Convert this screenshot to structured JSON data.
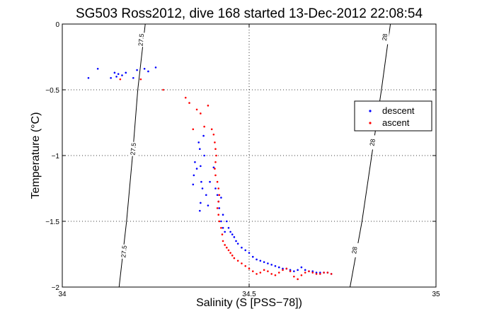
{
  "chart_data": {
    "type": "scatter",
    "title": "SG503 Ross2012, dive 168 started 13-Dec-2012 22:08:54",
    "xlabel": "Salinity (S [PSS−78])",
    "ylabel": "Temperature (°C)",
    "xlim": [
      34,
      35
    ],
    "ylim": [
      -2,
      0
    ],
    "x_ticks": [
      34,
      34.5,
      35
    ],
    "x_tick_labels": [
      "34",
      "34.5",
      "35"
    ],
    "y_ticks": [
      0,
      -0.5,
      -1,
      -1.5,
      -2
    ],
    "y_tick_labels": [
      "0",
      "−0.5",
      "−1",
      "−1.5",
      "−2"
    ],
    "grid": true,
    "legend_position": "upper-right",
    "density_contours": [
      {
        "label": "27.5",
        "points": [
          [
            34.152,
            -2.0
          ],
          [
            34.172,
            -1.5
          ],
          [
            34.188,
            -1.0
          ],
          [
            34.202,
            -0.5
          ],
          [
            34.222,
            0.0
          ]
        ],
        "label_positions": [
          [
            34.211,
            -0.12
          ],
          [
            34.19,
            -0.95
          ],
          [
            34.165,
            -1.73
          ]
        ]
      },
      {
        "label": "28",
        "points": [
          [
            34.77,
            -2.0
          ],
          [
            34.802,
            -1.5
          ],
          [
            34.828,
            -1.0
          ],
          [
            34.854,
            -0.5
          ],
          [
            34.878,
            0.0
          ]
        ],
        "label_positions": [
          [
            34.863,
            -0.1
          ],
          [
            34.83,
            -0.9
          ],
          [
            34.782,
            -1.72
          ]
        ]
      }
    ],
    "series": [
      {
        "name": "descent",
        "color": "#0000ff",
        "points": [
          [
            34.07,
            -0.41
          ],
          [
            34.095,
            -0.34
          ],
          [
            34.13,
            -0.41
          ],
          [
            34.14,
            -0.37
          ],
          [
            34.145,
            -0.4
          ],
          [
            34.15,
            -0.38
          ],
          [
            34.16,
            -0.39
          ],
          [
            34.17,
            -0.37
          ],
          [
            34.19,
            -0.41
          ],
          [
            34.2,
            -0.35
          ],
          [
            34.22,
            -0.34
          ],
          [
            34.25,
            -0.33
          ],
          [
            34.23,
            -0.36
          ],
          [
            34.35,
            -1.22
          ],
          [
            34.352,
            -1.15
          ],
          [
            34.355,
            -1.05
          ],
          [
            34.36,
            -1.1
          ],
          [
            34.365,
            -0.9
          ],
          [
            34.368,
            -0.95
          ],
          [
            34.37,
            -1.08
          ],
          [
            34.372,
            -1.2
          ],
          [
            34.375,
            -1.25
          ],
          [
            34.378,
            -0.85
          ],
          [
            34.38,
            -1.0
          ],
          [
            34.385,
            -1.3
          ],
          [
            34.37,
            -1.36
          ],
          [
            34.368,
            -1.42
          ],
          [
            34.39,
            -1.38
          ],
          [
            34.395,
            -1.2
          ],
          [
            34.405,
            -1.09
          ],
          [
            34.41,
            -1.25
          ],
          [
            34.415,
            -1.3
          ],
          [
            34.418,
            -1.35
          ],
          [
            34.42,
            -1.4
          ],
          [
            34.425,
            -1.32
          ],
          [
            34.43,
            -1.45
          ],
          [
            34.425,
            -1.5
          ],
          [
            34.43,
            -1.55
          ],
          [
            34.435,
            -1.58
          ],
          [
            34.44,
            -1.5
          ],
          [
            34.445,
            -1.55
          ],
          [
            34.45,
            -1.58
          ],
          [
            34.455,
            -1.6
          ],
          [
            34.46,
            -1.62
          ],
          [
            34.465,
            -1.65
          ],
          [
            34.47,
            -1.67
          ],
          [
            34.48,
            -1.7
          ],
          [
            34.49,
            -1.72
          ],
          [
            34.5,
            -1.74
          ],
          [
            34.51,
            -1.77
          ],
          [
            34.52,
            -1.79
          ],
          [
            34.53,
            -1.8
          ],
          [
            34.54,
            -1.81
          ],
          [
            34.55,
            -1.82
          ],
          [
            34.56,
            -1.83
          ],
          [
            34.57,
            -1.84
          ],
          [
            34.58,
            -1.85
          ],
          [
            34.59,
            -1.86
          ],
          [
            34.6,
            -1.86
          ],
          [
            34.61,
            -1.87
          ],
          [
            34.62,
            -1.88
          ],
          [
            34.63,
            -1.87
          ],
          [
            34.64,
            -1.85
          ],
          [
            34.65,
            -1.87
          ],
          [
            34.66,
            -1.88
          ],
          [
            34.67,
            -1.88
          ],
          [
            34.68,
            -1.89
          ],
          [
            34.69,
            -1.89
          ],
          [
            34.7,
            -1.89
          ],
          [
            34.71,
            -1.89
          ],
          [
            34.72,
            -1.9
          ]
        ]
      },
      {
        "name": "ascent",
        "color": "#ff0000",
        "points": [
          [
            34.155,
            -0.42
          ],
          [
            34.21,
            -0.42
          ],
          [
            34.27,
            -0.5
          ],
          [
            34.33,
            -0.56
          ],
          [
            34.34,
            -0.6
          ],
          [
            34.36,
            -0.65
          ],
          [
            34.37,
            -0.68
          ],
          [
            34.39,
            -0.62
          ],
          [
            34.38,
            -0.78
          ],
          [
            34.35,
            -0.8
          ],
          [
            34.4,
            -0.8
          ],
          [
            34.405,
            -0.84
          ],
          [
            34.408,
            -0.9
          ],
          [
            34.41,
            -0.95
          ],
          [
            34.412,
            -1.0
          ],
          [
            34.41,
            -1.05
          ],
          [
            34.408,
            -1.1
          ],
          [
            34.41,
            -1.15
          ],
          [
            34.415,
            -1.2
          ],
          [
            34.418,
            -1.25
          ],
          [
            34.42,
            -1.3
          ],
          [
            34.418,
            -1.35
          ],
          [
            34.415,
            -1.4
          ],
          [
            34.418,
            -1.45
          ],
          [
            34.42,
            -1.5
          ],
          [
            34.425,
            -1.55
          ],
          [
            34.428,
            -1.6
          ],
          [
            34.43,
            -1.65
          ],
          [
            34.435,
            -1.68
          ],
          [
            34.44,
            -1.7
          ],
          [
            34.445,
            -1.72
          ],
          [
            34.45,
            -1.74
          ],
          [
            34.455,
            -1.76
          ],
          [
            34.46,
            -1.78
          ],
          [
            34.47,
            -1.8
          ],
          [
            34.48,
            -1.82
          ],
          [
            34.49,
            -1.84
          ],
          [
            34.5,
            -1.86
          ],
          [
            34.51,
            -1.88
          ],
          [
            34.52,
            -1.9
          ],
          [
            34.53,
            -1.89
          ],
          [
            34.54,
            -1.87
          ],
          [
            34.55,
            -1.88
          ],
          [
            34.56,
            -1.9
          ],
          [
            34.57,
            -1.91
          ],
          [
            34.58,
            -1.89
          ],
          [
            34.59,
            -1.87
          ],
          [
            34.6,
            -1.86
          ],
          [
            34.61,
            -1.88
          ],
          [
            34.62,
            -1.92
          ],
          [
            34.63,
            -1.94
          ],
          [
            34.64,
            -1.91
          ],
          [
            34.65,
            -1.89
          ],
          [
            34.66,
            -1.88
          ],
          [
            34.67,
            -1.89
          ],
          [
            34.68,
            -1.9
          ],
          [
            34.69,
            -1.9
          ],
          [
            34.7,
            -1.89
          ],
          [
            34.71,
            -1.89
          ],
          [
            34.72,
            -1.9
          ]
        ]
      }
    ]
  }
}
